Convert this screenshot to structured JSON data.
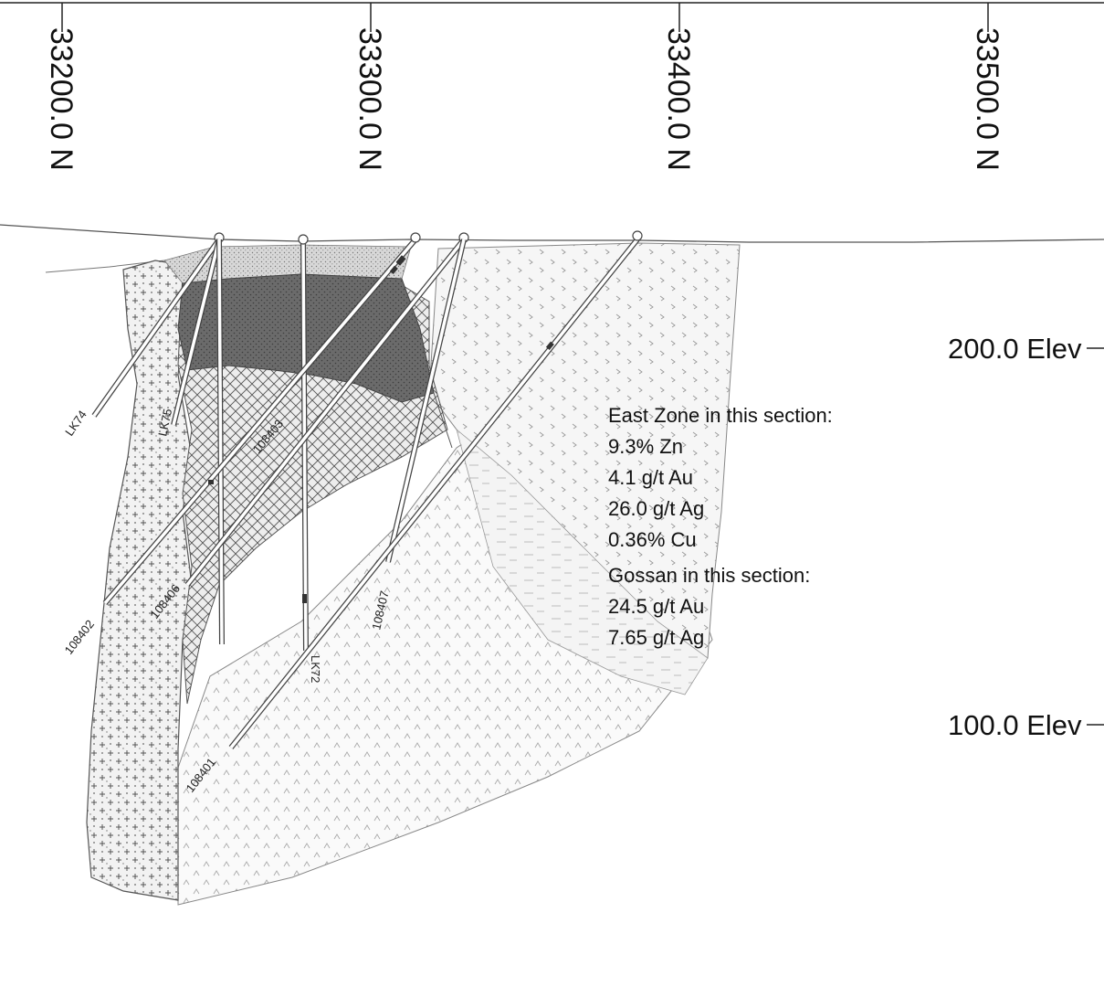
{
  "northings": [
    "33200.0 N",
    "33300.0 N",
    "33400.0 N",
    "33500.0 N"
  ],
  "elevations": [
    "200.0 Elev",
    "100.0 Elev"
  ],
  "drill_holes": {
    "lk74": "LK74",
    "lk75": "LK75",
    "h108403": "108403",
    "h108406": "108406",
    "h108402": "108402",
    "lk72": "LK72",
    "h108407": "108407",
    "h108401": "108401"
  },
  "east_zone": {
    "heading": "East Zone in this section:",
    "lines": [
      "9.3% Zn",
      "4.1 g/t Au",
      "26.0 g/t Ag",
      "0.36% Cu"
    ]
  },
  "gossan": {
    "heading": "Gossan in this section:",
    "lines": [
      "24.5 g/t Au",
      "7.65 g/t Ag"
    ]
  },
  "colors": {
    "massive_sulphide": "#6b6b6b",
    "outline": "#555555",
    "text": "#111111"
  }
}
